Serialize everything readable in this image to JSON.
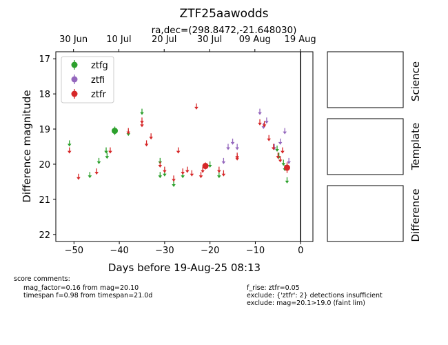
{
  "chart_data": {
    "type": "scatter",
    "title": "ZTF25aawodds",
    "subtitle": "ra,dec=(298.8472,-21.648030)",
    "xlabel": "Days before 19-Aug-25 08:13",
    "ylabel": "Difference magnitude",
    "xlim": [
      -54,
      2.7
    ],
    "ylim": [
      22.2,
      16.8
    ],
    "y_inverted": true,
    "x_ticks": [
      -50,
      -40,
      -30,
      -20,
      -10,
      0
    ],
    "y_ticks": [
      17,
      18,
      19,
      20,
      21,
      22
    ],
    "top_axis_ticks": [
      {
        "x": -50.1,
        "label": "30 Jun"
      },
      {
        "x": -40.1,
        "label": "10 Jul"
      },
      {
        "x": -30.1,
        "label": "20 Jul"
      },
      {
        "x": -20.1,
        "label": "30 Jul"
      },
      {
        "x": -10.1,
        "label": "09 Aug"
      },
      {
        "x": -0.1,
        "label": "19 Aug"
      }
    ],
    "vline_x": 0,
    "legend_position": "upper left",
    "series": [
      {
        "name": "ztfg",
        "color": "#2ca02c",
        "upper_limits": [
          [
            -51,
            19.4
          ],
          [
            -46.5,
            20.3
          ],
          [
            -44.5,
            19.9
          ],
          [
            -42.9,
            19.6
          ],
          [
            -42.7,
            19.75
          ],
          [
            -38,
            19.1
          ],
          [
            -35,
            18.5
          ],
          [
            -31,
            19.9
          ],
          [
            -31,
            20.3
          ],
          [
            -30,
            20.25
          ],
          [
            -28,
            20.55
          ],
          [
            -26,
            20.3
          ],
          [
            -20,
            20.0
          ],
          [
            -18,
            20.3
          ],
          [
            -5.2,
            19.55
          ],
          [
            -4.8,
            19.75
          ],
          [
            -3.8,
            19.95
          ],
          [
            -3.5,
            20.1
          ],
          [
            -3.0,
            20.45
          ]
        ],
        "detections": [
          [
            -41,
            19.05,
            0.12
          ]
        ]
      },
      {
        "name": "ztfi",
        "color": "#9467bd",
        "upper_limits": [
          [
            -17,
            19.9
          ],
          [
            -16,
            19.5
          ],
          [
            -15,
            19.35
          ],
          [
            -14,
            19.5
          ],
          [
            -9,
            18.5
          ],
          [
            -8.2,
            18.9
          ],
          [
            -7.5,
            18.75
          ],
          [
            -5.8,
            19.5
          ],
          [
            -4.5,
            19.35
          ],
          [
            -3.5,
            19.05
          ],
          [
            -2.6,
            19.9
          ]
        ],
        "detections": []
      },
      {
        "name": "ztfr",
        "color": "#d62728",
        "upper_limits": [
          [
            -51,
            19.6
          ],
          [
            -49,
            20.35
          ],
          [
            -45,
            20.2
          ],
          [
            -42,
            19.6
          ],
          [
            -38,
            19.05
          ],
          [
            -35,
            18.75
          ],
          [
            -35,
            18.85
          ],
          [
            -34,
            19.4
          ],
          [
            -33,
            19.2
          ],
          [
            -31,
            20.0
          ],
          [
            -30,
            20.15
          ],
          [
            -28,
            20.4
          ],
          [
            -27,
            19.6
          ],
          [
            -26,
            20.2
          ],
          [
            -25,
            20.15
          ],
          [
            -24,
            20.25
          ],
          [
            -23,
            18.35
          ],
          [
            -22,
            20.3
          ],
          [
            -21.6,
            20.15
          ],
          [
            -18,
            20.15
          ],
          [
            -17,
            20.25
          ],
          [
            -14,
            19.75
          ],
          [
            -14,
            19.8
          ],
          [
            -9,
            18.8
          ],
          [
            -8,
            18.85
          ],
          [
            -7,
            19.25
          ],
          [
            -6,
            19.5
          ],
          [
            -5,
            19.75
          ],
          [
            -4.5,
            19.85
          ],
          [
            -4,
            19.6
          ]
        ],
        "detections": [
          [
            -21,
            20.05,
            0.1
          ],
          [
            -3,
            20.1,
            0.15
          ]
        ]
      }
    ],
    "cutout_labels": [
      "Science",
      "Template",
      "Difference"
    ]
  },
  "comments": {
    "header": "score comments:",
    "left": [
      "mag_factor=0.16 from mag=20.10",
      "timespan f=0.98 from timespan=21.0d"
    ],
    "right": [
      "f_rise: ztfr=0.05",
      "exclude: {'ztfr': 2} detections insufficient",
      "exclude: mag=20.1>19.0 (faint lim)"
    ]
  }
}
